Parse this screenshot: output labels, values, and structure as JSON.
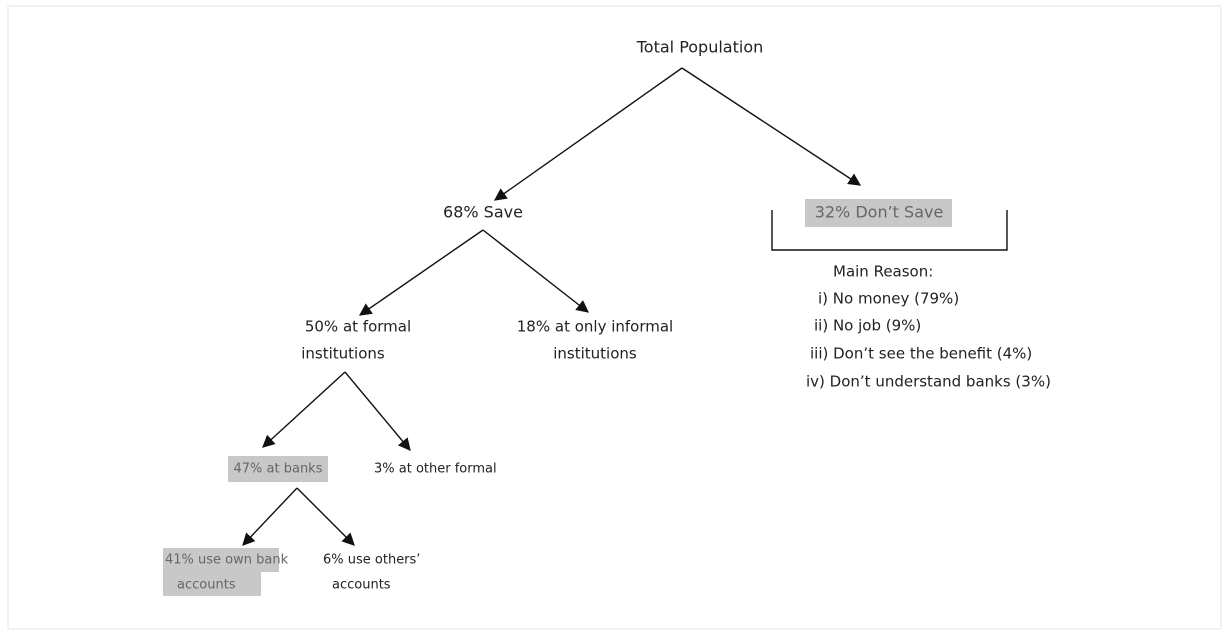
{
  "nodes": [
    {
      "lines": [
        "Total Population"
      ]
    },
    {
      "lines": [
        "68% Save"
      ]
    },
    {
      "lines": [
        "32% Don’t Save"
      ]
    },
    {
      "lines": [
        "50% at formal",
        "institutions"
      ]
    },
    {
      "lines": [
        "18% at only informal",
        "institutions"
      ]
    },
    {
      "lines": [
        "47% at banks"
      ]
    },
    {
      "lines": [
        "3% at other formal"
      ]
    },
    {
      "lines": [
        "41% use own bank",
        "accounts"
      ]
    },
    {
      "lines": [
        "6% use others’",
        "accounts"
      ]
    }
  ],
  "reasons": {
    "title": "Main Reason:",
    "items": [
      "i) No money (79%)",
      "ii) No job (9%)",
      "iii) Don’t see the benefit (4%)",
      "iv) Don’t understand banks (3%)"
    ]
  }
}
